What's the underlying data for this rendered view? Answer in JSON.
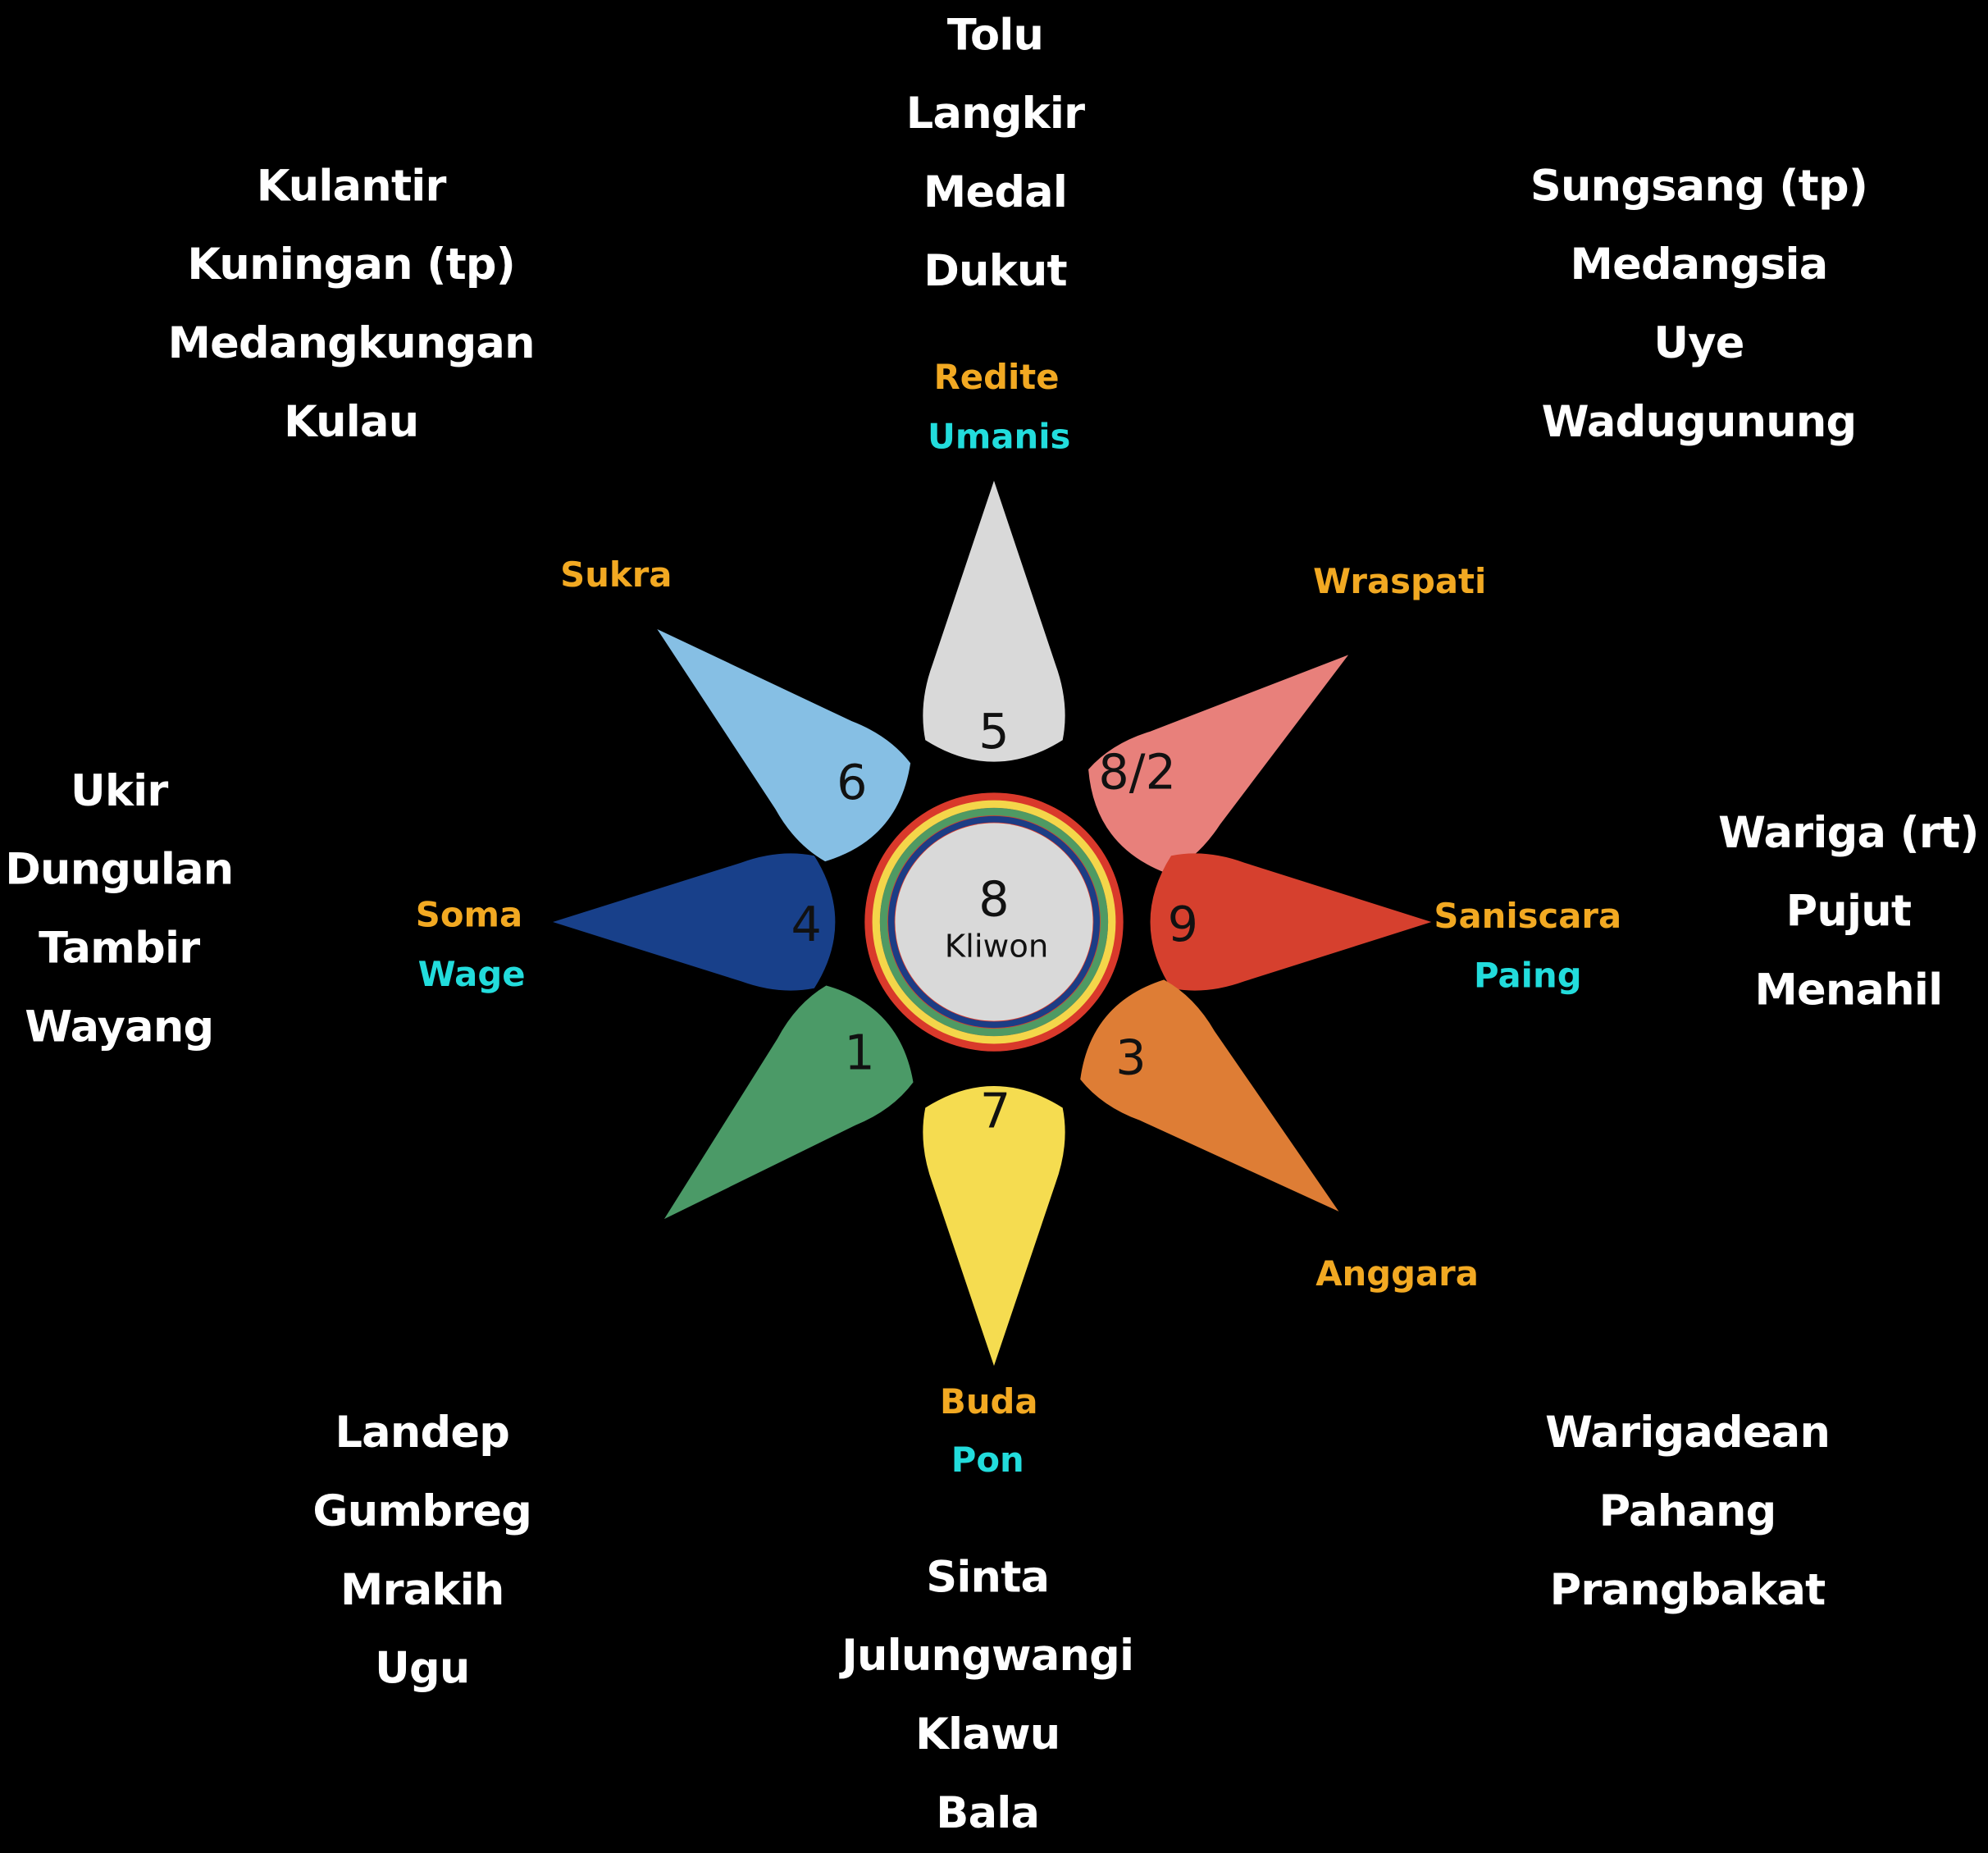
{
  "center": {
    "number": "8",
    "label": "Kliwon",
    "fill": "#d9d9d9"
  },
  "rings": [
    "#d9392b",
    "#f4d64a",
    "#4f9a63",
    "#1c3d85"
  ],
  "petals": [
    {
      "id": "north",
      "number": "5",
      "fill": "#d9d9d9",
      "day": "Redite",
      "pasaran": "Umanis"
    },
    {
      "id": "northeast",
      "number": "8/2",
      "fill": "#e8807b",
      "day": "Wraspati",
      "pasaran": ""
    },
    {
      "id": "east",
      "number": "9",
      "fill": "#d6402e",
      "day": "Saniscara",
      "pasaran": "Paing"
    },
    {
      "id": "southeast",
      "number": "3",
      "fill": "#de7d35",
      "day": "Anggara",
      "pasaran": ""
    },
    {
      "id": "south",
      "number": "7",
      "fill": "#f5dc50",
      "day": "Buda",
      "pasaran": "Pon"
    },
    {
      "id": "southwest",
      "number": "1",
      "fill": "#4b9a67",
      "day": "",
      "pasaran": ""
    },
    {
      "id": "west",
      "number": "4",
      "fill": "#18408a",
      "day": "Soma",
      "pasaran": "Wage"
    },
    {
      "id": "northwest",
      "number": "6",
      "fill": "#86bfe4",
      "day": "Sukra",
      "pasaran": ""
    }
  ],
  "wuku_groups": {
    "top": [
      "Tolu",
      "Langkir",
      "Medal",
      "Dukut"
    ],
    "top_left": [
      "Kulantir",
      "Kuningan (tp)",
      "Medangkungan",
      "Kulau"
    ],
    "top_right": [
      "Sungsang (tp)",
      "Medangsia",
      "Uye",
      "Wadugunung"
    ],
    "left": [
      "Ukir",
      "Dungulan",
      "Tambir",
      "Wayang"
    ],
    "right": [
      "Wariga (rt)",
      "Pujut",
      "Menahil"
    ],
    "bottom_left": [
      "Landep",
      "Gumbreg",
      "Mrakih",
      "Ugu"
    ],
    "bottom": [
      "Sinta",
      "Julungwangi",
      "Klawu",
      "Bala"
    ],
    "bottom_right": [
      "Warigadean",
      "Pahang",
      "Prangbakat"
    ]
  }
}
